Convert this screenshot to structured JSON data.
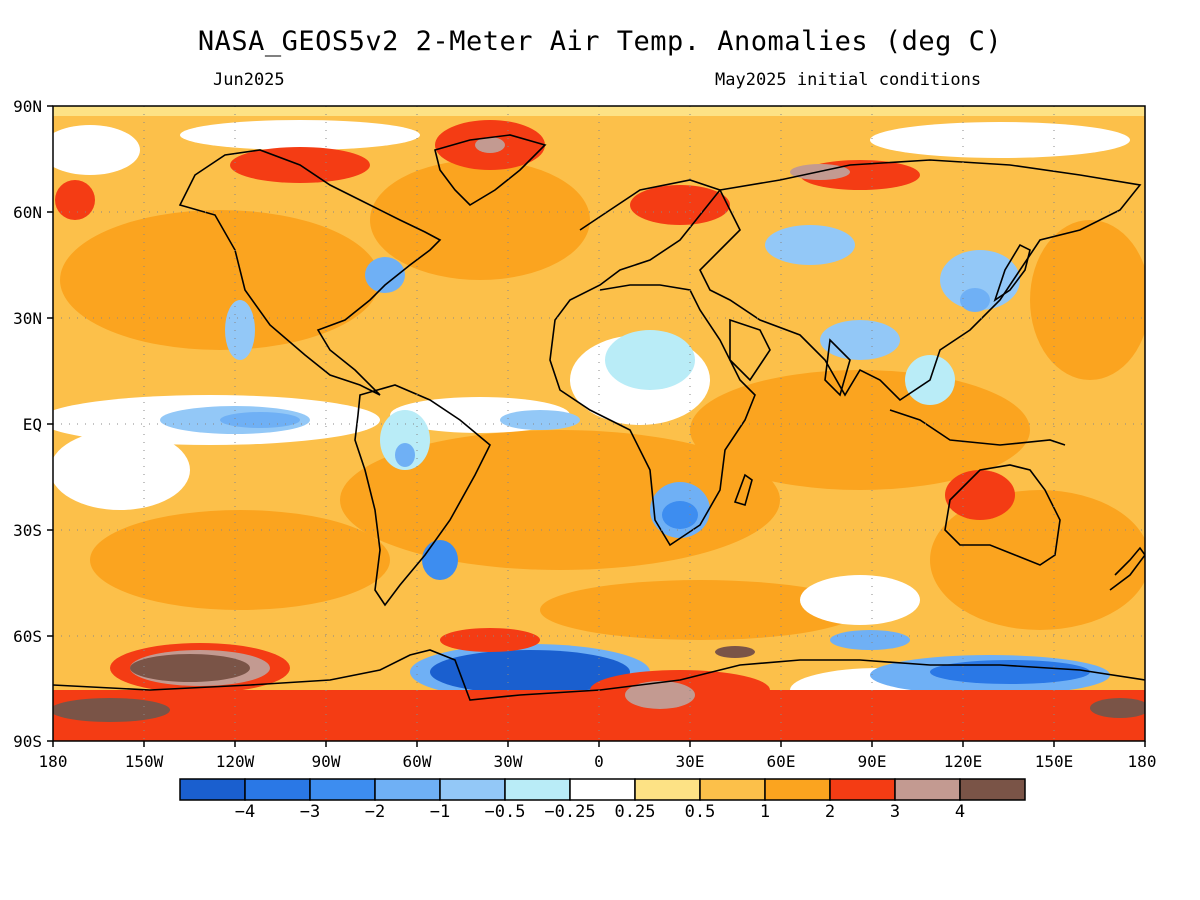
{
  "header": {
    "title": "NASA_GEOS5v2 2-Meter Air Temp. Anomalies (deg C)",
    "left_label": "Jun2025",
    "right_label": "May2025 initial conditions"
  },
  "map": {
    "projection": "equirectangular",
    "extent": {
      "lon": [
        -180,
        180
      ],
      "lat": [
        -90,
        90
      ]
    },
    "lat_labels": [
      "90N",
      "60N",
      "30N",
      "EQ",
      "30S",
      "60S",
      "90S"
    ],
    "lon_labels": [
      "180",
      "150W",
      "120W",
      "90W",
      "60W",
      "30W",
      "0",
      "30E",
      "60E",
      "90E",
      "120E",
      "150E",
      "180"
    ],
    "grid": "dotted"
  },
  "colorbar": {
    "labels": [
      "-4",
      "-3",
      "-2",
      "-1",
      "-0.5",
      "-0.25",
      "0.25",
      "0.5",
      "1",
      "2",
      "3",
      "4"
    ],
    "colors": [
      "#1a5fcf",
      "#2a78e6",
      "#3d8df0",
      "#6fb0f5",
      "#93c8f7",
      "#b9ecf7",
      "#ffffff",
      "#fde285",
      "#fcc04a",
      "#fba41f",
      "#f43c14",
      "#c39a91",
      "#7a5447"
    ]
  },
  "chart_data": {
    "type": "heatmap",
    "title": "NASA_GEOS5v2 2-Meter Air Temp. Anomalies (deg C)",
    "variable": "2-meter air temperature anomaly",
    "units": "deg C",
    "period": "Jun2025",
    "initial_conditions": "May2025",
    "x_range": [
      -180,
      180
    ],
    "y_range": [
      -90,
      90
    ],
    "levels": [
      -4,
      -3,
      -2,
      -1,
      -0.5,
      -0.25,
      0.25,
      0.5,
      1,
      2,
      3,
      4
    ]
  }
}
